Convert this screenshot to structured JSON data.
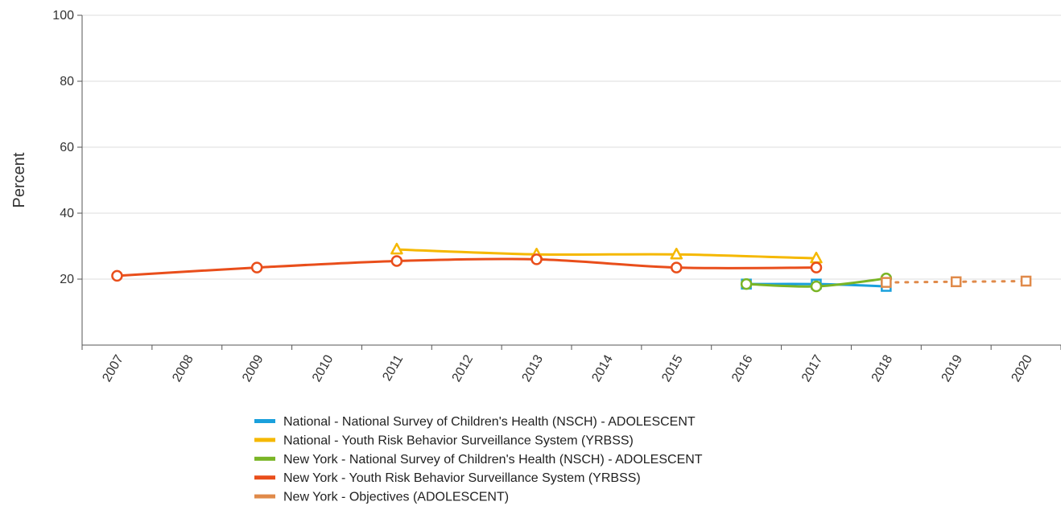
{
  "chart_data": {
    "type": "line",
    "title": "",
    "xlabel": "",
    "ylabel": "Percent",
    "ylim": [
      0,
      100
    ],
    "y_ticks": [
      20,
      40,
      60,
      80,
      100
    ],
    "grid": true,
    "legend_position": "bottom",
    "categories": [
      "2007",
      "2008",
      "2009",
      "2010",
      "2011",
      "2012",
      "2013",
      "2014",
      "2015",
      "2016",
      "2017",
      "2018",
      "2019",
      "2020"
    ],
    "series": [
      {
        "name": "National - National Survey of Children's Health (NSCH) - ADOLESCENT",
        "color": "#1aa0dc",
        "marker": "square",
        "dashed": false,
        "x": [
          "2016",
          "2017",
          "2018"
        ],
        "values": [
          18.5,
          18.5,
          17.8
        ]
      },
      {
        "name": "National - Youth Risk Behavior Surveillance System (YRBSS)",
        "color": "#f5b800",
        "marker": "triangle",
        "dashed": false,
        "x": [
          "2011",
          "2013",
          "2015",
          "2017"
        ],
        "values": [
          29.0,
          27.5,
          27.5,
          26.3
        ]
      },
      {
        "name": "New York - National Survey of Children's Health (NSCH) - ADOLESCENT",
        "color": "#7ab526",
        "marker": "circle",
        "dashed": false,
        "x": [
          "2016",
          "2017",
          "2018"
        ],
        "values": [
          18.5,
          17.8,
          20.2
        ]
      },
      {
        "name": "New York - Youth Risk Behavior Surveillance System (YRBSS)",
        "color": "#e94e1b",
        "marker": "circle",
        "dashed": false,
        "x": [
          "2007",
          "2009",
          "2011",
          "2013",
          "2015",
          "2017"
        ],
        "values": [
          21.0,
          23.5,
          25.5,
          26.0,
          23.5,
          23.5
        ]
      },
      {
        "name": "New York - Objectives (ADOLESCENT)",
        "color": "#e08a4a",
        "marker": "square",
        "dashed": true,
        "x": [
          "2018",
          "2019",
          "2020"
        ],
        "values": [
          19.0,
          19.2,
          19.4
        ]
      }
    ]
  }
}
